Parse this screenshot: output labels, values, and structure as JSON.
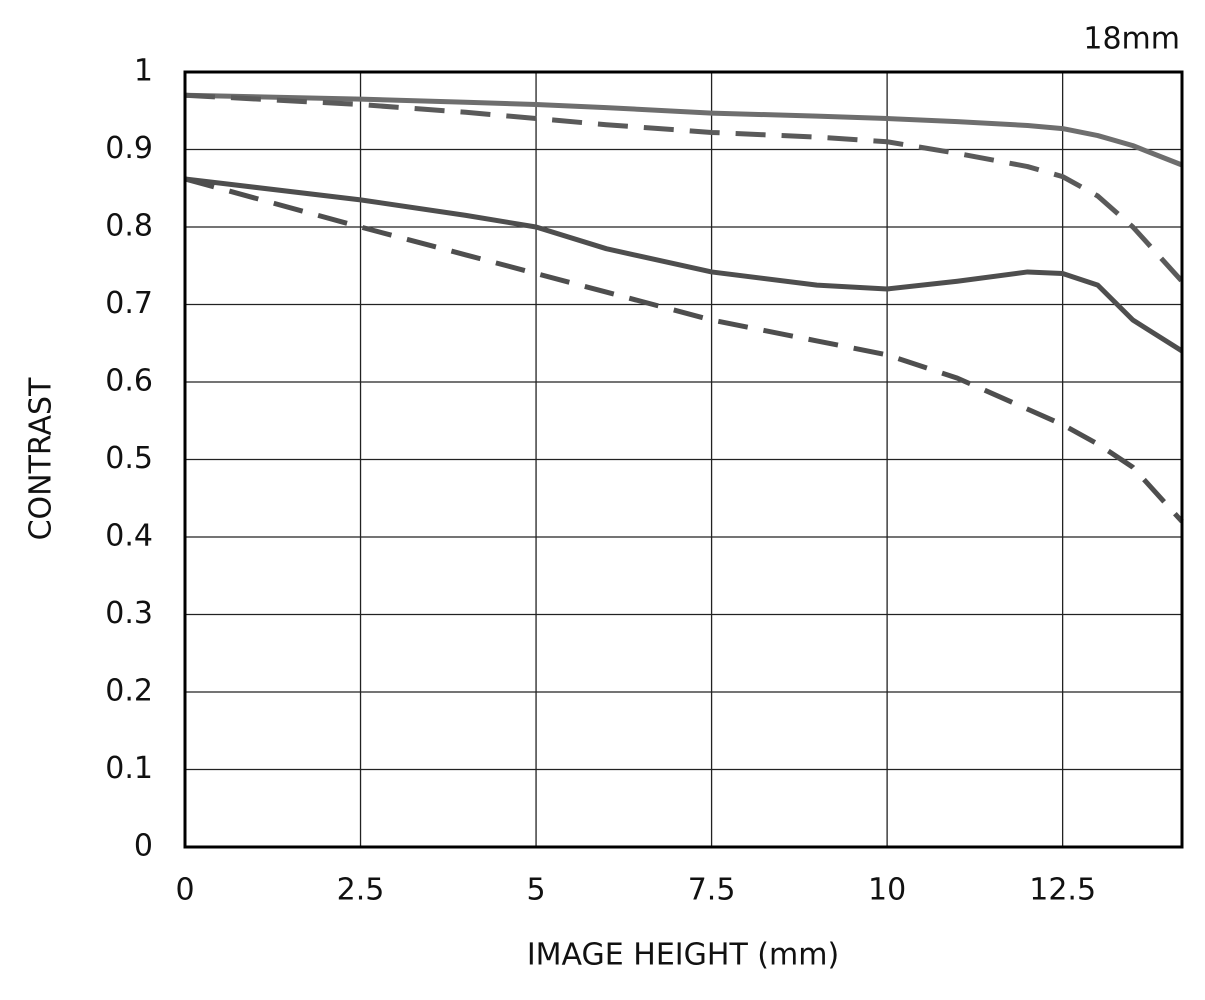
{
  "chart_data": {
    "type": "line",
    "title": "18mm",
    "x_label": "IMAGE HEIGHT (mm)",
    "y_label": "CONTRAST",
    "x": [
      0,
      2.5,
      4,
      5,
      6,
      7.5,
      9,
      10,
      11,
      12,
      12.5,
      13,
      13.5,
      14.2
    ],
    "series": [
      {
        "color": "#6e6e6e",
        "dashed": false,
        "values": [
          0.97,
          0.965,
          0.961,
          0.958,
          0.954,
          0.947,
          0.943,
          0.94,
          0.936,
          0.931,
          0.927,
          0.918,
          0.905,
          0.88
        ]
      },
      {
        "color": "#5a5a5a",
        "dashed": true,
        "values": [
          0.97,
          0.958,
          0.948,
          0.94,
          0.932,
          0.922,
          0.916,
          0.91,
          0.895,
          0.878,
          0.865,
          0.84,
          0.8,
          0.73
        ]
      },
      {
        "color": "#4e4e4e",
        "dashed": false,
        "values": [
          0.862,
          0.835,
          0.815,
          0.8,
          0.772,
          0.742,
          0.725,
          0.72,
          0.73,
          0.742,
          0.74,
          0.725,
          0.68,
          0.64
        ]
      },
      {
        "color": "#4e4e4e",
        "dashed": true,
        "values": [
          0.862,
          0.8,
          0.764,
          0.74,
          0.716,
          0.68,
          0.653,
          0.635,
          0.605,
          0.565,
          0.545,
          0.52,
          0.49,
          0.42
        ]
      }
    ],
    "xlim": [
      0,
      14.2
    ],
    "ylim": [
      0,
      1
    ],
    "xticks": [
      0,
      2.5,
      5,
      7.5,
      10,
      12.5
    ],
    "yticks": [
      0,
      0.1,
      0.2,
      0.3,
      0.4,
      0.5,
      0.6,
      0.7,
      0.8,
      0.9,
      1
    ],
    "grid": true
  }
}
